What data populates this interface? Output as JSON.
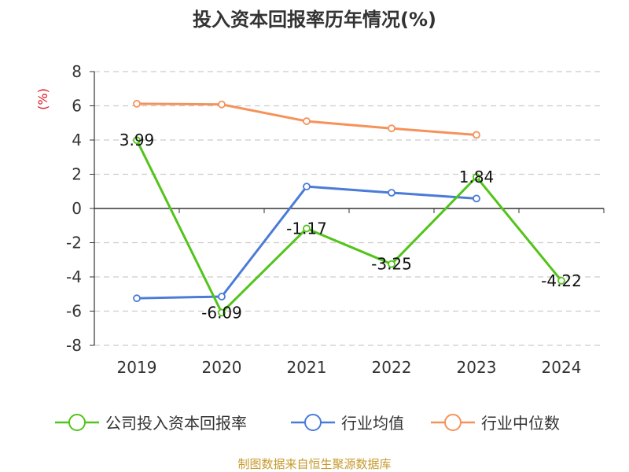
{
  "chart_data": {
    "type": "line",
    "title": "投入资本回报率历年情况(%)",
    "ylabel": "(%)",
    "categories": [
      "2019",
      "2020",
      "2021",
      "2022",
      "2023",
      "2024"
    ],
    "ylim": [
      -8,
      8
    ],
    "yticks": [
      8,
      6,
      4,
      2,
      0,
      -2,
      -4,
      -6,
      -8
    ],
    "grid": true,
    "legend_position": "bottom",
    "series": [
      {
        "name": "公司投入资本回报率",
        "color": "#52c41a",
        "values": [
          3.99,
          -6.09,
          -1.17,
          -3.25,
          1.84,
          -4.22
        ],
        "labels": [
          "3.99",
          "-6.09",
          "-1.17",
          "-3.25",
          "1.84",
          "-4.22"
        ]
      },
      {
        "name": "行业均值",
        "color": "#4a7bd8",
        "values": [
          -5.25,
          -5.15,
          1.28,
          0.92,
          0.58,
          null
        ]
      },
      {
        "name": "行业中位数",
        "color": "#f5925a",
        "values": [
          6.12,
          6.08,
          5.1,
          4.68,
          4.3,
          null
        ]
      }
    ]
  },
  "source": "制图数据来自恒生聚源数据库"
}
